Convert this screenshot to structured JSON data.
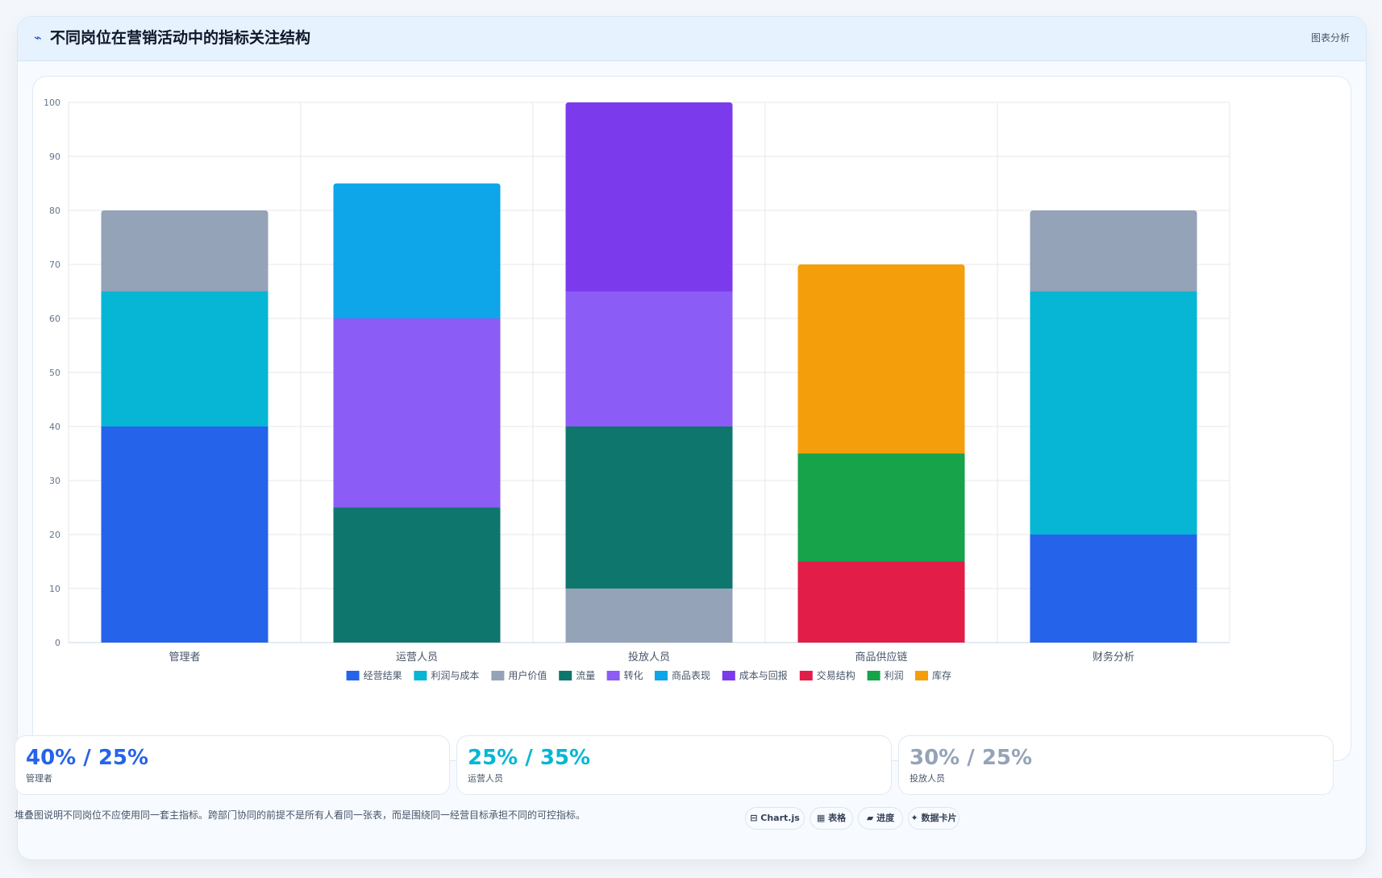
{
  "header": {
    "icon": "chart-line-icon",
    "title": "不同岗位在营销活动中的指标关注结构",
    "tag": "图表分析"
  },
  "chart_data": {
    "type": "bar",
    "stacked": true,
    "categories": [
      "管理者",
      "运营人员",
      "投放人员",
      "商品供应链",
      "财务分析"
    ],
    "ylim": [
      0,
      100
    ],
    "yticks": [
      0,
      10,
      20,
      30,
      40,
      50,
      60,
      70,
      80,
      90,
      100
    ],
    "grid": true,
    "legend_position": "bottom",
    "series": [
      {
        "name": "经营结果",
        "color": "#2563eb",
        "values": [
          40,
          0,
          0,
          0,
          20
        ]
      },
      {
        "name": "利润与成本",
        "color": "#06b6d4",
        "values": [
          25,
          0,
          0,
          0,
          45
        ]
      },
      {
        "name": "用户价值",
        "color": "#94a3b8",
        "values": [
          15,
          0,
          10,
          0,
          15
        ]
      },
      {
        "name": "流量",
        "color": "#0f766e",
        "values": [
          0,
          25,
          30,
          0,
          0
        ]
      },
      {
        "name": "转化",
        "color": "#8b5cf6",
        "values": [
          0,
          35,
          25,
          0,
          0
        ]
      },
      {
        "name": "商品表现",
        "color": "#0ea5e9",
        "values": [
          0,
          25,
          0,
          0,
          0
        ]
      },
      {
        "name": "成本与回报",
        "color": "#7c3aed",
        "values": [
          0,
          0,
          35,
          0,
          0
        ]
      },
      {
        "name": "交易结构",
        "color": "#e11d48",
        "values": [
          0,
          0,
          0,
          15,
          0
        ]
      },
      {
        "name": "利润",
        "color": "#16a34a",
        "values": [
          0,
          0,
          0,
          20,
          0
        ]
      },
      {
        "name": "库存",
        "color": "#f59e0b",
        "values": [
          0,
          0,
          0,
          35,
          0
        ]
      }
    ]
  },
  "kpis": [
    {
      "value": "40% / 25%",
      "label": "管理者",
      "color": "#2563eb"
    },
    {
      "value": "25% / 35%",
      "label": "运营人员",
      "color": "#06b6d4"
    },
    {
      "value": "30% / 25%",
      "label": "投放人员",
      "color": "#94a3b8"
    }
  ],
  "note": "堆叠图说明不同岗位不应使用同一套主指标。跨部门协同的前提不是所有人看同一张表，而是围绕同一经营目标承担不同的可控指标。",
  "pills": [
    "⊟ Chart.js",
    "▦ 表格",
    "▰ 进度",
    "✦ 数据卡片"
  ]
}
